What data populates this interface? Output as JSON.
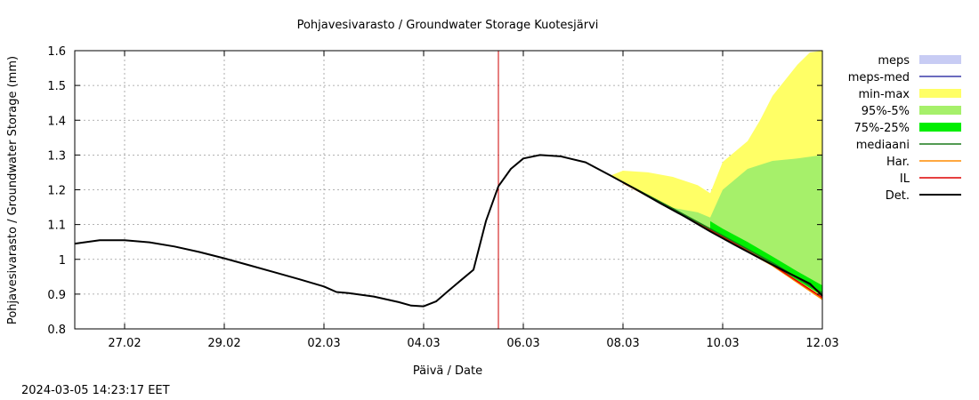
{
  "chart_data": {
    "type": "line",
    "title": "Pohjavesivarasto / Groundwater Storage   Kuotesjärvi",
    "xlabel": "Päivä / Date",
    "ylabel": "Pohjavesivarasto / Groundwater Storage (mm)",
    "footer": "2024-03-05 14:23:17 EET",
    "xlim": [
      "2024-02-26T00:00",
      "2024-03-12T00:00"
    ],
    "ylim": [
      0.8,
      1.6
    ],
    "grid": true,
    "legend_placement": "right",
    "x_ticks": [
      {
        "date": "2024-02-27",
        "label": "27.02"
      },
      {
        "date": "2024-02-29",
        "label": "29.02"
      },
      {
        "date": "2024-03-02",
        "label": "02.03"
      },
      {
        "date": "2024-03-04",
        "label": "04.03"
      },
      {
        "date": "2024-03-06",
        "label": "06.03"
      },
      {
        "date": "2024-03-08",
        "label": "08.03"
      },
      {
        "date": "2024-03-10",
        "label": "10.03"
      },
      {
        "date": "2024-03-12",
        "label": "12.03"
      }
    ],
    "y_ticks": [
      {
        "value": 0.8,
        "label": "0.8"
      },
      {
        "value": 0.9,
        "label": "0.9"
      },
      {
        "value": 1.0,
        "label": "1"
      },
      {
        "value": 1.1,
        "label": "1.1"
      },
      {
        "value": 1.2,
        "label": "1.2"
      },
      {
        "value": 1.3,
        "label": "1.3"
      },
      {
        "value": 1.4,
        "label": "1.4"
      },
      {
        "value": 1.5,
        "label": "1.5"
      },
      {
        "value": 1.6,
        "label": "1.6"
      }
    ],
    "vline": {
      "x": "2024-03-05T12:00",
      "color": "#cc0000"
    },
    "legend": [
      {
        "label": "meps",
        "kind": "band",
        "color": "#c8ccf4"
      },
      {
        "label": "meps-med",
        "kind": "line",
        "color": "#3a3aa8"
      },
      {
        "label": "min-max",
        "kind": "band",
        "color": "#ffff66"
      },
      {
        "label": "95%-5%",
        "kind": "band",
        "color": "#a6f06a"
      },
      {
        "label": "75%-25%",
        "kind": "band",
        "color": "#00ee00"
      },
      {
        "label": "mediaani",
        "kind": "line",
        "color": "#1a7a1a"
      },
      {
        "label": "Har.",
        "kind": "line",
        "color": "#ff8c00"
      },
      {
        "label": "IL",
        "kind": "line",
        "color": "#dd0000"
      },
      {
        "label": "Det.",
        "kind": "line",
        "color": "#000000"
      }
    ],
    "series": [
      {
        "name": "Det.",
        "color": "#000000",
        "points": [
          [
            "2024-02-26T00:00",
            1.045
          ],
          [
            "2024-02-26T12:00",
            1.055
          ],
          [
            "2024-02-27T00:00",
            1.055
          ],
          [
            "2024-02-27T12:00",
            1.049
          ],
          [
            "2024-02-28T00:00",
            1.037
          ],
          [
            "2024-02-28T12:00",
            1.021
          ],
          [
            "2024-02-29T00:00",
            1.003
          ],
          [
            "2024-02-29T12:00",
            0.983
          ],
          [
            "2024-03-01T00:00",
            0.963
          ],
          [
            "2024-03-01T12:00",
            0.943
          ],
          [
            "2024-03-02T00:00",
            0.922
          ],
          [
            "2024-03-02T06:00",
            0.906
          ],
          [
            "2024-03-02T12:00",
            0.903
          ],
          [
            "2024-03-03T00:00",
            0.893
          ],
          [
            "2024-03-03T12:00",
            0.877
          ],
          [
            "2024-03-03T18:00",
            0.867
          ],
          [
            "2024-03-04T00:00",
            0.865
          ],
          [
            "2024-03-04T06:00",
            0.879
          ],
          [
            "2024-03-04T12:00",
            0.91
          ],
          [
            "2024-03-04T18:00",
            0.94
          ],
          [
            "2024-03-05T00:00",
            0.97
          ],
          [
            "2024-03-05T06:00",
            1.11
          ],
          [
            "2024-03-05T12:00",
            1.21
          ],
          [
            "2024-03-05T18:00",
            1.26
          ],
          [
            "2024-03-06T00:00",
            1.29
          ],
          [
            "2024-03-06T08:00",
            1.3
          ],
          [
            "2024-03-06T18:00",
            1.296
          ],
          [
            "2024-03-07T06:00",
            1.279
          ],
          [
            "2024-03-07T18:00",
            1.241
          ],
          [
            "2024-03-08T06:00",
            1.202
          ],
          [
            "2024-03-08T18:00",
            1.161
          ],
          [
            "2024-03-09T06:00",
            1.122
          ],
          [
            "2024-03-09T18:00",
            1.08
          ],
          [
            "2024-03-10T06:00",
            1.041
          ],
          [
            "2024-03-10T18:00",
            1.003
          ],
          [
            "2024-03-11T06:00",
            0.966
          ],
          [
            "2024-03-11T18:00",
            0.93
          ],
          [
            "2024-03-12T00:00",
            0.895
          ]
        ]
      },
      {
        "name": "Har.",
        "color": "#ff8c00",
        "points": [
          [
            "2024-03-08T00:00",
            1.22
          ],
          [
            "2024-03-09T00:00",
            1.143
          ],
          [
            "2024-03-10T00:00",
            1.063
          ],
          [
            "2024-03-11T00:00",
            0.982
          ],
          [
            "2024-03-12T00:00",
            0.885
          ]
        ]
      },
      {
        "name": "IL",
        "color": "#dd0000",
        "points": [
          [
            "2024-03-08T00:00",
            1.221
          ],
          [
            "2024-03-09T00:00",
            1.144
          ],
          [
            "2024-03-10T00:00",
            1.064
          ],
          [
            "2024-03-11T00:00",
            0.984
          ],
          [
            "2024-03-12T00:00",
            0.89
          ]
        ]
      },
      {
        "name": "mediaani",
        "color": "#1a7a1a",
        "points": [
          [
            "2024-03-08T00:00",
            1.222
          ],
          [
            "2024-03-09T00:00",
            1.146
          ],
          [
            "2024-03-10T00:00",
            1.068
          ],
          [
            "2024-03-11T00:00",
            0.99
          ],
          [
            "2024-03-12T00:00",
            0.903
          ]
        ]
      }
    ],
    "bands": [
      {
        "name": "min-max",
        "color": "#ffff66",
        "upper": [
          [
            "2024-03-07T18:00",
            1.241
          ],
          [
            "2024-03-08T00:00",
            1.255
          ],
          [
            "2024-03-08T12:00",
            1.25
          ],
          [
            "2024-03-09T00:00",
            1.237
          ],
          [
            "2024-03-09T12:00",
            1.213
          ],
          [
            "2024-03-09T18:00",
            1.19
          ],
          [
            "2024-03-10T00:00",
            1.28
          ],
          [
            "2024-03-10T12:00",
            1.34
          ],
          [
            "2024-03-10T18:00",
            1.4
          ],
          [
            "2024-03-11T00:00",
            1.47
          ],
          [
            "2024-03-11T12:00",
            1.56
          ],
          [
            "2024-03-11T18:00",
            1.595
          ],
          [
            "2024-03-12T00:00",
            1.6
          ]
        ],
        "lower": [
          [
            "2024-03-12T00:00",
            0.885
          ],
          [
            "2024-03-11T00:00",
            0.982
          ],
          [
            "2024-03-10T00:00",
            1.063
          ],
          [
            "2024-03-09T00:00",
            1.143
          ],
          [
            "2024-03-08T00:00",
            1.22
          ],
          [
            "2024-03-07T18:00",
            1.241
          ]
        ]
      },
      {
        "name": "95%-5%",
        "color": "#a6f06a",
        "upper": [
          [
            "2024-03-09T00:00",
            1.148
          ],
          [
            "2024-03-09T12:00",
            1.135
          ],
          [
            "2024-03-09T18:00",
            1.12
          ],
          [
            "2024-03-10T00:00",
            1.2
          ],
          [
            "2024-03-10T12:00",
            1.26
          ],
          [
            "2024-03-11T00:00",
            1.283
          ],
          [
            "2024-03-11T12:00",
            1.29
          ],
          [
            "2024-03-12T00:00",
            1.3
          ]
        ],
        "lower": [
          [
            "2024-03-12T00:00",
            0.895
          ],
          [
            "2024-03-11T00:00",
            0.985
          ],
          [
            "2024-03-10T00:00",
            1.065
          ],
          [
            "2024-03-09T00:00",
            1.145
          ]
        ]
      },
      {
        "name": "75%-25%",
        "color": "#00ee00",
        "upper": [
          [
            "2024-03-09T18:00",
            1.11
          ],
          [
            "2024-03-10T00:00",
            1.088
          ],
          [
            "2024-03-10T12:00",
            1.05
          ],
          [
            "2024-03-11T00:00",
            1.008
          ],
          [
            "2024-03-11T12:00",
            0.965
          ],
          [
            "2024-03-12T00:00",
            0.925
          ]
        ],
        "lower": [
          [
            "2024-03-12T00:00",
            0.895
          ],
          [
            "2024-03-11T12:00",
            0.94
          ],
          [
            "2024-03-11T00:00",
            0.985
          ],
          [
            "2024-03-10T12:00",
            1.028
          ],
          [
            "2024-03-10T00:00",
            1.066
          ],
          [
            "2024-03-09T18:00",
            1.085
          ]
        ]
      }
    ]
  }
}
